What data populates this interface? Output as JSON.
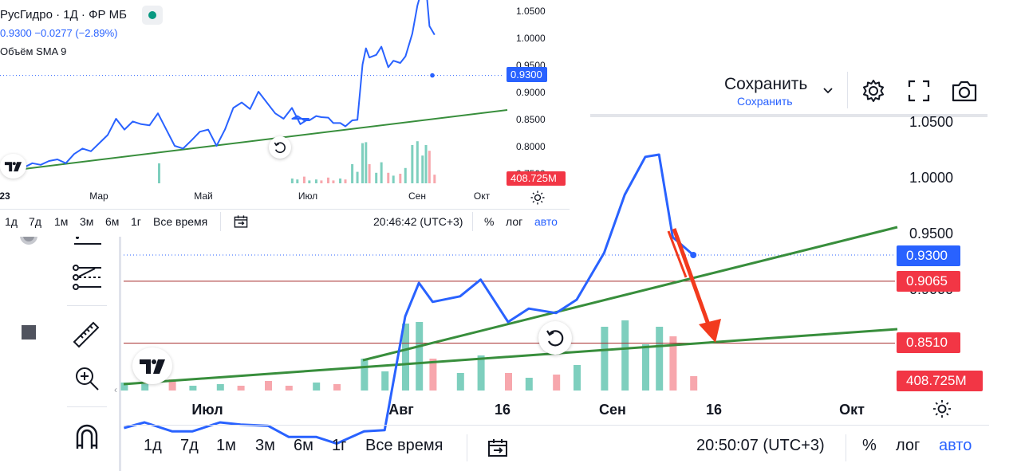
{
  "header": {
    "save_label": "Сохранить",
    "save_sublabel": "Сохранить",
    "settings_icon": "gear-icon",
    "fullscreen_icon": "fullscreen-icon",
    "snapshot_icon": "camera-icon"
  },
  "small_panel": {
    "symbol": "РусГидро · 1Д · ФР МБ",
    "price": "0.9300",
    "change": "−0.0277 (−2.89%)",
    "volume_label": "Объём SMA 9",
    "price_badge": "0.9300",
    "volume_badge": "408.725M",
    "time_labels": [
      "23",
      "Мар",
      "Май",
      "Июл",
      "Сен",
      "Окт"
    ],
    "price_labels": [
      "1.0500",
      "1.0000",
      "0.9500",
      "0.9000",
      "0.8500",
      "0.8000",
      "0.7500"
    ],
    "timeframes": [
      "1д",
      "7д",
      "1м",
      "3м",
      "6м",
      "1г",
      "Все время"
    ],
    "clock": "20:46:42 (UTC+3)",
    "percent": "%",
    "log": "лог",
    "auto": "авто"
  },
  "big_panel": {
    "price_labels": [
      "1.0500",
      "1.0000",
      "0.9500",
      "0.9000"
    ],
    "price_badge": "0.9300",
    "level1_badge": "0.9065",
    "level2_badge": "0.8510",
    "volume_badge": "408.725M",
    "time_labels": [
      "Июл",
      "Авг",
      "16",
      "Сен",
      "16",
      "Окт"
    ],
    "timeframes": [
      "1д",
      "7д",
      "1м",
      "3м",
      "6м",
      "1г",
      "Все время"
    ],
    "clock": "20:50:07 (UTC+3)",
    "percent": "%",
    "log": "лог",
    "auto": "авто"
  },
  "colors": {
    "line": "#2962ff",
    "trend": "#388e3c",
    "level": "#a52a2a",
    "badge_blue": "#2962ff",
    "badge_red": "#f23645",
    "vol_up": "#7ecfbe",
    "vol_down": "#f7a7ad",
    "arrow": "#f23a1d"
  },
  "chart_data": [
    {
      "type": "line",
      "title": "РусГидро · 1Д · ФР МБ",
      "ylim": [
        0.75,
        1.05
      ],
      "x": [
        "2023-06-20",
        "2023-06-23",
        "2023-06-27",
        "2023-06-30",
        "2023-07-04",
        "2023-07-07",
        "2023-07-11",
        "2023-07-14",
        "2023-07-18",
        "2023-07-21",
        "2023-07-25",
        "2023-07-28",
        "2023-07-31",
        "2023-08-02",
        "2023-08-04",
        "2023-08-08",
        "2023-08-11",
        "2023-08-15",
        "2023-08-18",
        "2023-08-22",
        "2023-08-25",
        "2023-08-29",
        "2023-09-01",
        "2023-09-04",
        "2023-09-06",
        "2023-09-08",
        "2023-09-11"
      ],
      "series": [
        {
          "values": [
            0.775,
            0.78,
            0.772,
            0.772,
            0.78,
            0.778,
            0.777,
            0.767,
            0.767,
            0.761,
            0.772,
            0.773,
            0.875,
            0.905,
            0.888,
            0.893,
            0.908,
            0.87,
            0.882,
            0.878,
            0.89,
            0.932,
            0.984,
            1.018,
            1.02,
            0.946,
            0.93
          ]
        }
      ],
      "volume_m": [
        50,
        40,
        70,
        30,
        40,
        30,
        60,
        30,
        50,
        40,
        200,
        120,
        420,
        430,
        200,
        110,
        220,
        110,
        80,
        100,
        160,
        400,
        440,
        290,
        400,
        340,
        90
      ]
    }
  ]
}
